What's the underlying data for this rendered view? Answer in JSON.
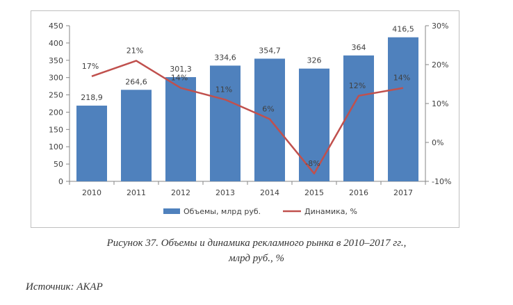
{
  "chart_data": {
    "type": "bar",
    "categories": [
      "2010",
      "2011",
      "2012",
      "2013",
      "2014",
      "2015",
      "2016",
      "2017"
    ],
    "series": [
      {
        "name": "Объемы, млрд руб.",
        "type": "bar",
        "axis": "left",
        "color": "#4f81bd",
        "values": [
          218.9,
          264.6,
          301.3,
          334.6,
          354.7,
          326,
          364,
          416.5
        ],
        "labels": [
          "218,9",
          "264,6",
          "301,3",
          "334,6",
          "354,7",
          "326",
          "364",
          "416,5"
        ]
      },
      {
        "name": "Динамика, %",
        "type": "line",
        "axis": "right",
        "color": "#c0504d",
        "values": [
          17,
          21,
          14,
          11,
          6,
          -8,
          12,
          14
        ],
        "labels": [
          "17%",
          "21%",
          "14%",
          "11%",
          "6%",
          "-8%",
          "12%",
          "14%"
        ]
      }
    ],
    "y_left": {
      "ylim": [
        0,
        450
      ],
      "ticks": [
        0,
        50,
        100,
        150,
        200,
        250,
        300,
        350,
        400,
        450
      ],
      "tick_labels": [
        "0",
        "50",
        "100",
        "150",
        "200",
        "250",
        "300",
        "350",
        "400",
        "450"
      ]
    },
    "y_right": {
      "ylim": [
        -10,
        30
      ],
      "ticks": [
        -10,
        0,
        10,
        20,
        30
      ],
      "tick_labels": [
        "-10%",
        "0%",
        "10%",
        "20%",
        "30%"
      ]
    },
    "grid": false,
    "legend": "bottom"
  },
  "caption": {
    "line1": "Рисунок 37. Объемы и динамика рекламного рынка в 2010–2017 гг.,",
    "line2": "млрд руб., %"
  },
  "source": "Источник: АКАР"
}
